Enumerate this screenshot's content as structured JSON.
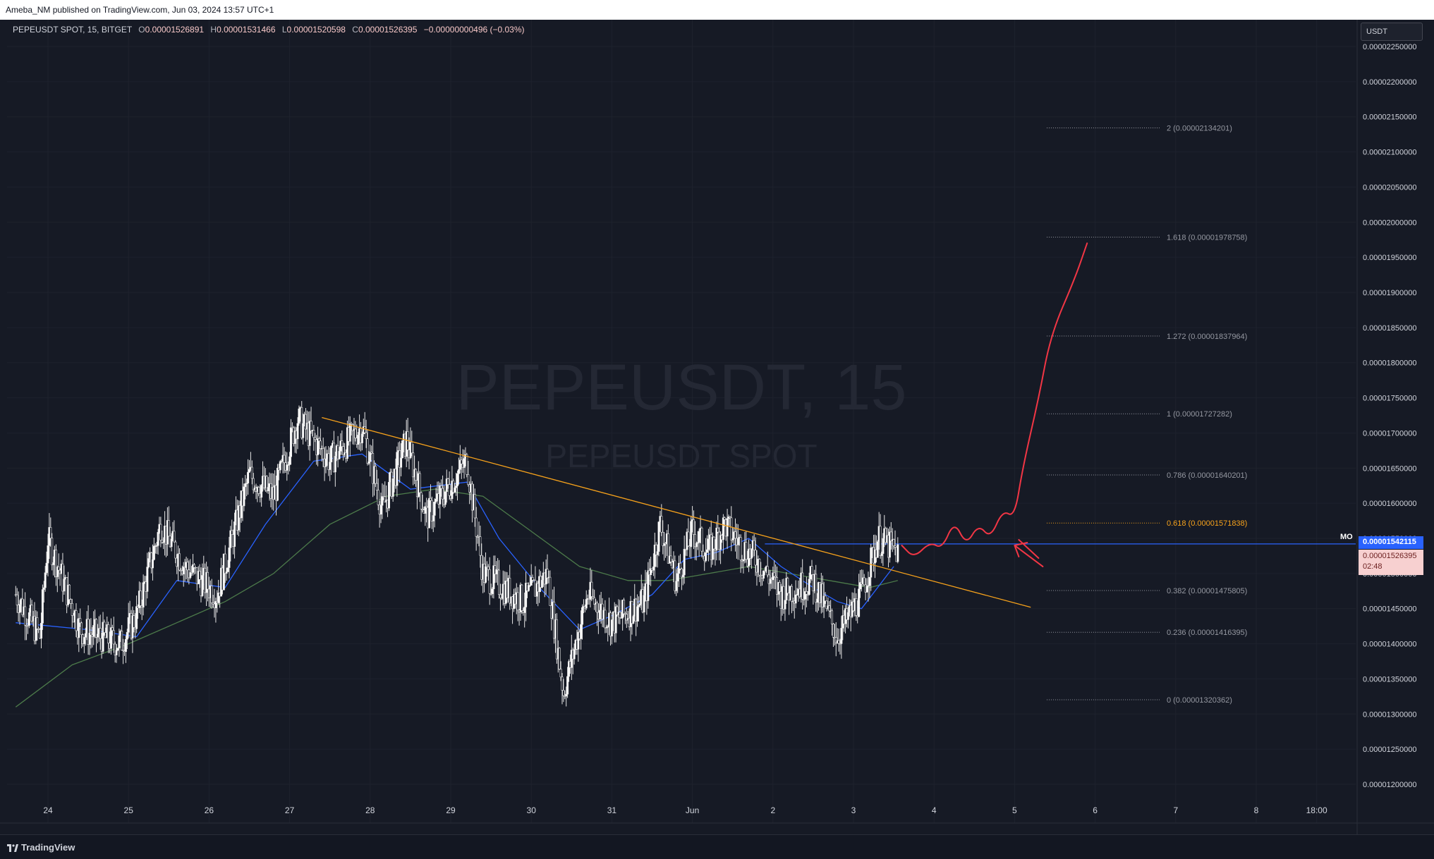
{
  "header": {
    "published_text": "Ameba_NM published on TradingView.com, Jun 03, 2024 13:57 UTC+1"
  },
  "legend": {
    "symbol": "PEPEUSDT SPOT, 15, BITGET",
    "o_label": "O",
    "o_value": "0.00001526891",
    "h_label": "H",
    "h_value": "0.00001531466",
    "l_label": "L",
    "l_value": "0.00001520598",
    "c_label": "C",
    "c_value": "0.00001526395",
    "change": "−0.00000000496 (−0.03%)"
  },
  "currency": "USDT",
  "watermark": {
    "main": "PEPEUSDT, 15",
    "sub": "PEPEUSDT SPOT"
  },
  "price_tags": {
    "last": "0.00001542115",
    "close": "0.00001526395",
    "countdown": "02:48",
    "marker": "MO"
  },
  "branding": "TradingView",
  "colors": {
    "background": "#161a25",
    "candle_up": "#e6e6e6",
    "candle_down": "#e6e6e6",
    "ma_fast": "#2962ff",
    "ma_slow": "#4c7a4a",
    "trendline": "#f7a21b",
    "projection": "#f23645",
    "hline": "#2962ff",
    "fib_orange": "#f7a21b",
    "fib_grey": "#9598a1"
  },
  "chart_data": {
    "type": "line",
    "symbol": "PEPEUSDT",
    "interval": "15",
    "y_unit": "USDT",
    "ylim": [
      1.17e-05,
      2.28e-05
    ],
    "y_ticks": [
      "0.00002250000",
      "0.00002200000",
      "0.00002150000",
      "0.00002100000",
      "0.00002050000",
      "0.00002000000",
      "0.00001950000",
      "0.00001900000",
      "0.00001850000",
      "0.00001800000",
      "0.00001750000",
      "0.00001700000",
      "0.00001650000",
      "0.00001600000",
      "0.00001550000",
      "0.00001500000",
      "0.00001450000",
      "0.00001400000",
      "0.00001350000",
      "0.00001300000",
      "0.00001250000",
      "0.00001200000"
    ],
    "x_ticks": [
      "24",
      "25",
      "26",
      "27",
      "28",
      "29",
      "30",
      "31",
      "Jun",
      "2",
      "3",
      "4",
      "5",
      "6",
      "7",
      "8",
      "18:00"
    ],
    "price_series_day_pivots": [
      {
        "x": 23.6,
        "y": 1.47e-05
      },
      {
        "x": 23.9,
        "y": 1.41e-05
      },
      {
        "x": 24.0,
        "y": 1.55e-05
      },
      {
        "x": 24.4,
        "y": 1.42e-05
      },
      {
        "x": 24.9,
        "y": 1.4e-05
      },
      {
        "x": 25.1,
        "y": 1.44e-05
      },
      {
        "x": 25.4,
        "y": 1.57e-05
      },
      {
        "x": 25.7,
        "y": 1.51e-05
      },
      {
        "x": 26.1,
        "y": 1.47e-05
      },
      {
        "x": 26.5,
        "y": 1.64e-05
      },
      {
        "x": 26.8,
        "y": 1.61e-05
      },
      {
        "x": 27.1,
        "y": 1.72e-05
      },
      {
        "x": 27.5,
        "y": 1.66e-05
      },
      {
        "x": 27.9,
        "y": 1.71e-05
      },
      {
        "x": 28.15,
        "y": 1.59e-05
      },
      {
        "x": 28.45,
        "y": 1.69e-05
      },
      {
        "x": 28.7,
        "y": 1.58e-05
      },
      {
        "x": 29.2,
        "y": 1.66e-05
      },
      {
        "x": 29.4,
        "y": 1.5e-05
      },
      {
        "x": 29.9,
        "y": 1.46e-05
      },
      {
        "x": 30.2,
        "y": 1.5e-05
      },
      {
        "x": 30.4,
        "y": 1.33e-05
      },
      {
        "x": 30.7,
        "y": 1.47e-05
      },
      {
        "x": 31.0,
        "y": 1.43e-05
      },
      {
        "x": 31.4,
        "y": 1.46e-05
      },
      {
        "x": 31.6,
        "y": 1.57e-05
      },
      {
        "x": 31.8,
        "y": 1.49e-05
      },
      {
        "x": 32.0,
        "y": 1.56e-05
      },
      {
        "x": 32.2,
        "y": 1.53e-05
      },
      {
        "x": 32.4,
        "y": 1.57e-05
      },
      {
        "x": 32.6,
        "y": 1.54e-05
      },
      {
        "x": 32.8,
        "y": 1.52e-05
      },
      {
        "x": 33.1,
        "y": 1.47e-05
      },
      {
        "x": 33.5,
        "y": 1.49e-05
      },
      {
        "x": 33.8,
        "y": 1.41e-05
      },
      {
        "x": 34.1,
        "y": 1.47e-05
      },
      {
        "x": 34.3,
        "y": 1.55e-05
      },
      {
        "x": 34.55,
        "y": 1.53e-05
      }
    ],
    "ma_fast_points": [
      {
        "x": 23.6,
        "y": 1.43e-05
      },
      {
        "x": 24.5,
        "y": 1.42e-05
      },
      {
        "x": 25.1,
        "y": 1.41e-05
      },
      {
        "x": 25.6,
        "y": 1.49e-05
      },
      {
        "x": 26.2,
        "y": 1.48e-05
      },
      {
        "x": 26.7,
        "y": 1.57e-05
      },
      {
        "x": 27.3,
        "y": 1.66e-05
      },
      {
        "x": 27.9,
        "y": 1.67e-05
      },
      {
        "x": 28.5,
        "y": 1.62e-05
      },
      {
        "x": 29.2,
        "y": 1.63e-05
      },
      {
        "x": 29.6,
        "y": 1.55e-05
      },
      {
        "x": 30.1,
        "y": 1.48e-05
      },
      {
        "x": 30.6,
        "y": 1.42e-05
      },
      {
        "x": 31.0,
        "y": 1.44e-05
      },
      {
        "x": 31.5,
        "y": 1.47e-05
      },
      {
        "x": 31.9,
        "y": 1.52e-05
      },
      {
        "x": 32.3,
        "y": 1.53e-05
      },
      {
        "x": 32.7,
        "y": 1.55e-05
      },
      {
        "x": 33.1,
        "y": 1.51e-05
      },
      {
        "x": 33.5,
        "y": 1.48e-05
      },
      {
        "x": 33.8,
        "y": 1.46e-05
      },
      {
        "x": 34.1,
        "y": 1.45e-05
      },
      {
        "x": 34.5,
        "y": 1.51e-05
      }
    ],
    "ma_slow_points": [
      {
        "x": 23.6,
        "y": 1.31e-05
      },
      {
        "x": 24.3,
        "y": 1.37e-05
      },
      {
        "x": 25.0,
        "y": 1.4e-05
      },
      {
        "x": 25.6,
        "y": 1.43e-05
      },
      {
        "x": 26.2,
        "y": 1.46e-05
      },
      {
        "x": 26.8,
        "y": 1.5e-05
      },
      {
        "x": 27.5,
        "y": 1.57e-05
      },
      {
        "x": 28.2,
        "y": 1.61e-05
      },
      {
        "x": 28.8,
        "y": 1.62e-05
      },
      {
        "x": 29.4,
        "y": 1.61e-05
      },
      {
        "x": 30.0,
        "y": 1.56e-05
      },
      {
        "x": 30.6,
        "y": 1.51e-05
      },
      {
        "x": 31.2,
        "y": 1.49e-05
      },
      {
        "x": 31.7,
        "y": 1.49e-05
      },
      {
        "x": 32.2,
        "y": 1.5e-05
      },
      {
        "x": 32.7,
        "y": 1.51e-05
      },
      {
        "x": 33.2,
        "y": 1.5e-05
      },
      {
        "x": 33.7,
        "y": 1.49e-05
      },
      {
        "x": 34.2,
        "y": 1.48e-05
      },
      {
        "x": 34.55,
        "y": 1.49e-05
      }
    ],
    "trendline": {
      "x1": 27.4,
      "y1": 1.722e-05,
      "x2": 36.2,
      "y2": 1.452e-05
    },
    "horizontal_line": {
      "y": 1.542115e-05
    },
    "fib_levels": [
      {
        "label": "2 (0.00002134201)",
        "value": 2.134201e-05,
        "color": "grey"
      },
      {
        "label": "1.618 (0.00001978758)",
        "value": 1.978758e-05,
        "color": "grey"
      },
      {
        "label": "1.272 (0.00001837964)",
        "value": 1.837964e-05,
        "color": "grey"
      },
      {
        "label": "1 (0.00001727282)",
        "value": 1.727282e-05,
        "color": "grey"
      },
      {
        "label": "0.786 (0.00001640201)",
        "value": 1.640201e-05,
        "color": "grey"
      },
      {
        "label": "0.618 (0.00001571838)",
        "value": 1.571838e-05,
        "color": "orange"
      },
      {
        "label": "0.382 (0.00001475805)",
        "value": 1.475805e-05,
        "color": "grey"
      },
      {
        "label": "0.236 (0.00001416395)",
        "value": 1.416395e-05,
        "color": "grey"
      },
      {
        "label": "0 (0.00001320362)",
        "value": 1.320362e-05,
        "color": "grey"
      }
    ],
    "fib_x_range": [
      36.4,
      37.8
    ],
    "projection_path": [
      {
        "x": 34.6,
        "y": 1.54e-05
      },
      {
        "x": 34.75,
        "y": 1.522e-05
      },
      {
        "x": 34.95,
        "y": 1.545e-05
      },
      {
        "x": 35.1,
        "y": 1.535e-05
      },
      {
        "x": 35.25,
        "y": 1.575e-05
      },
      {
        "x": 35.4,
        "y": 1.54e-05
      },
      {
        "x": 35.55,
        "y": 1.57e-05
      },
      {
        "x": 35.7,
        "y": 1.55e-05
      },
      {
        "x": 35.85,
        "y": 1.59e-05
      },
      {
        "x": 36.0,
        "y": 1.58e-05
      },
      {
        "x": 36.1,
        "y": 1.65e-05
      },
      {
        "x": 36.3,
        "y": 1.75e-05
      },
      {
        "x": 36.45,
        "y": 1.84e-05
      },
      {
        "x": 36.75,
        "y": 1.92e-05
      },
      {
        "x": 36.9,
        "y": 1.97e-05
      }
    ],
    "arrow_point": {
      "x": 36.0,
      "y": 1.54e-05
    }
  }
}
